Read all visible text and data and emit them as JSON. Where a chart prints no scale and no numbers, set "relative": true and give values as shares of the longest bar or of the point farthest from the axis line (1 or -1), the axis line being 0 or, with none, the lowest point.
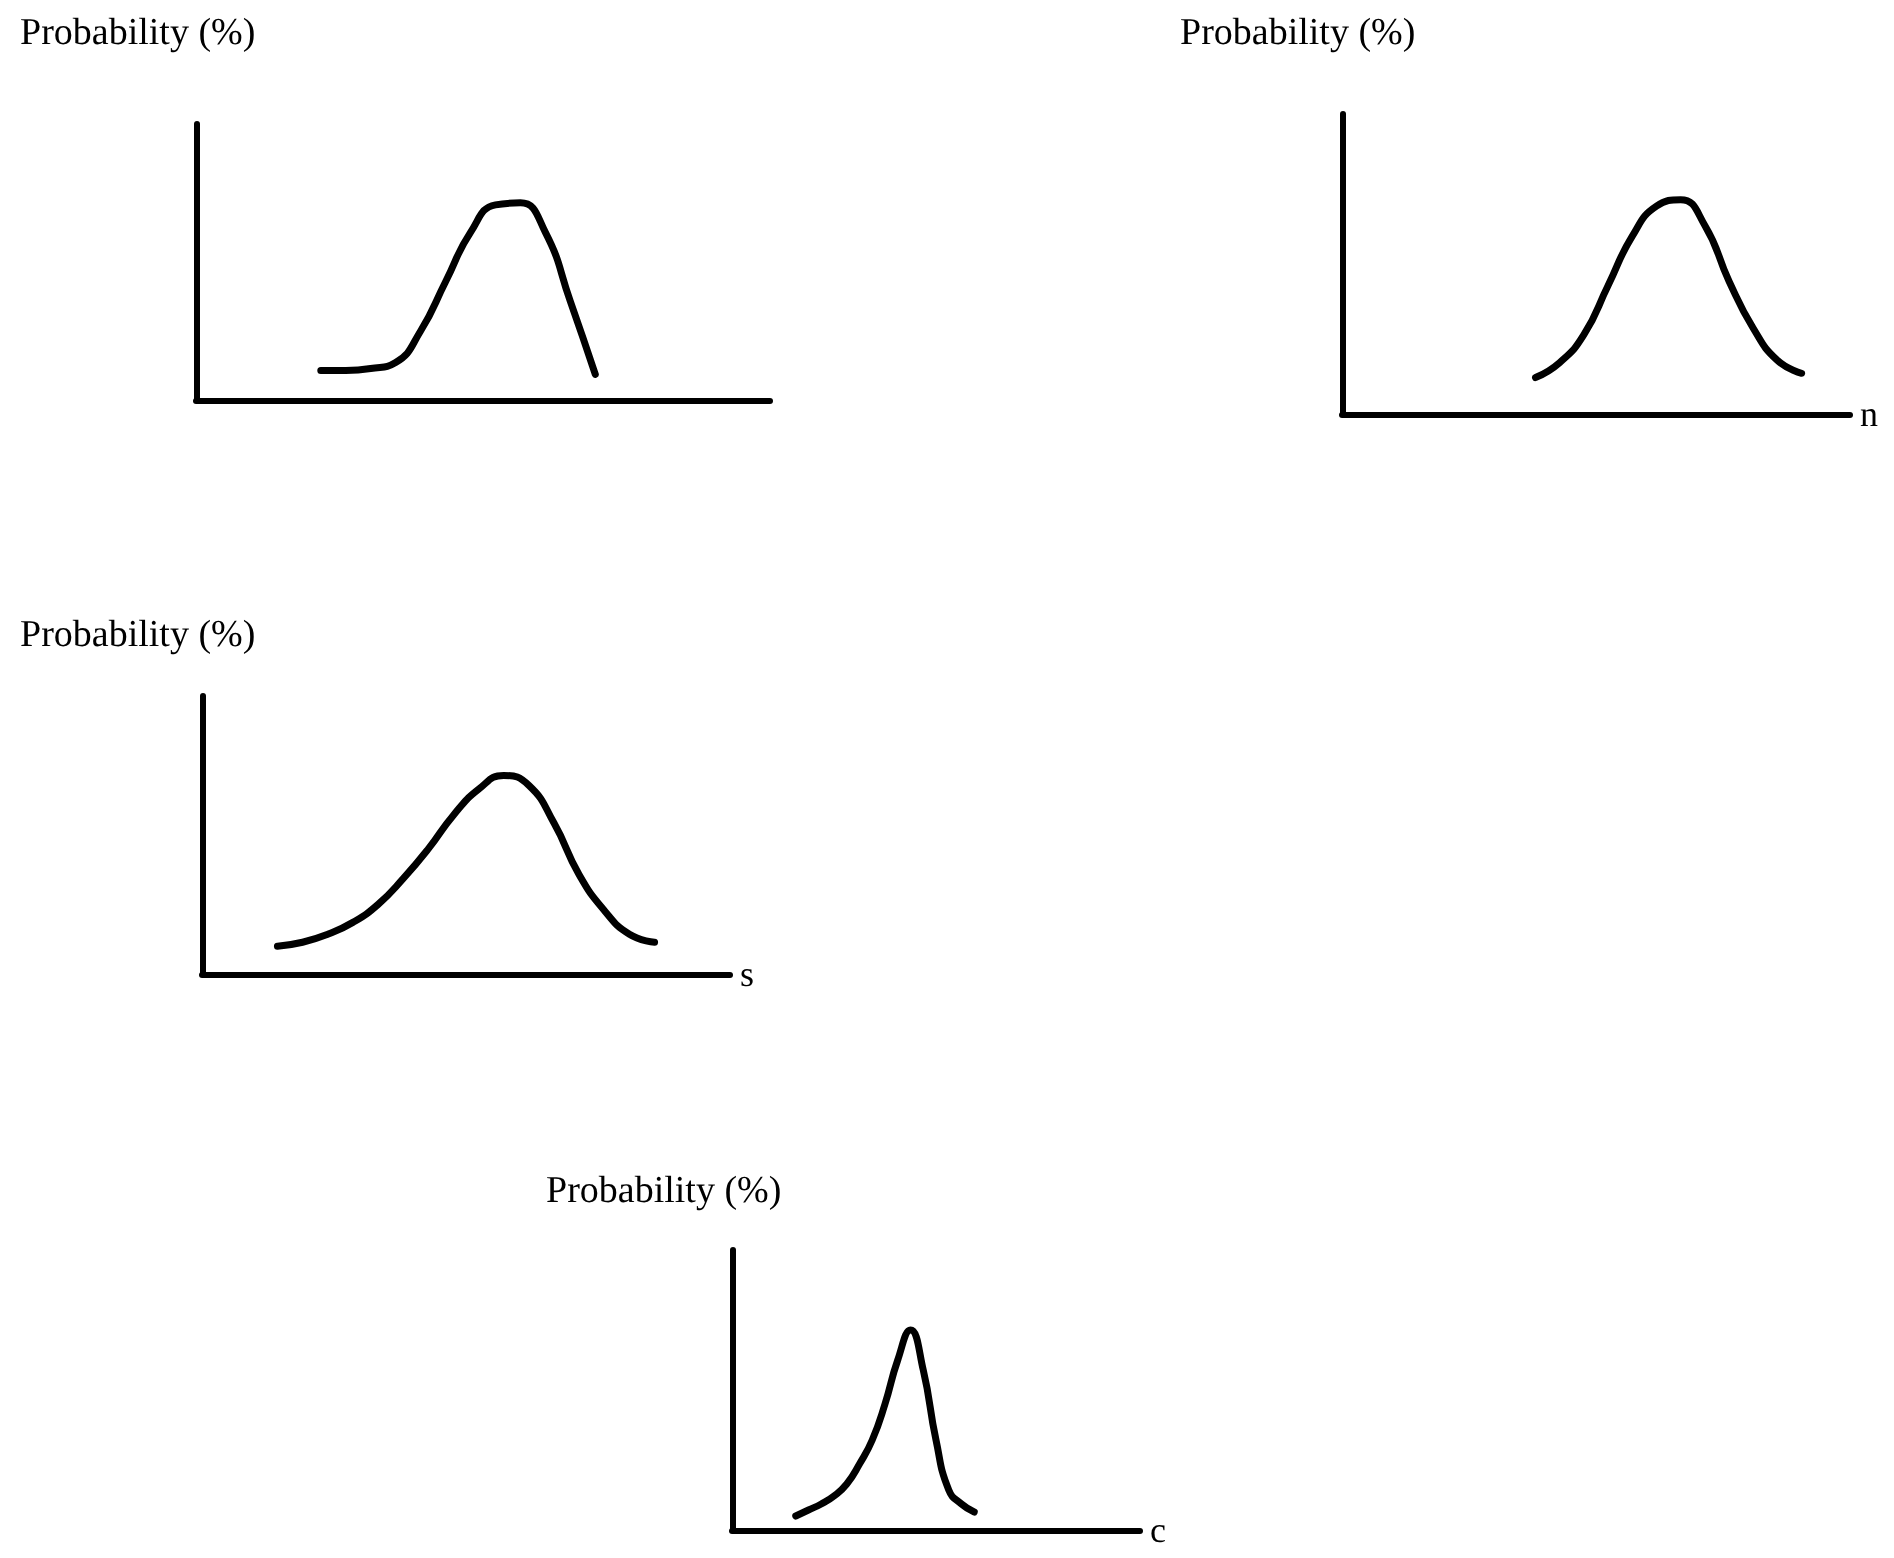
{
  "chart_data": [
    {
      "type": "line",
      "relative": true,
      "title": "Probability (%)",
      "categories": [
        null,
        null,
        null,
        null,
        null,
        null,
        null,
        null,
        null,
        null,
        null,
        null,
        null,
        null,
        null,
        null,
        null,
        null,
        null,
        null,
        null,
        null,
        null,
        null
      ],
      "series": [
        {
          "color": "#000000",
          "values": [
            null,
            null,
            null,
            null,
            null,
            0.15,
            0.15,
            0.16,
            0.19,
            0.35,
            0.6,
            0.85,
            0.99,
            1.0,
            0.85,
            0.5,
            0.13,
            null,
            null,
            null,
            null,
            null,
            null,
            null
          ]
        }
      ]
    },
    {
      "type": "line",
      "relative": true,
      "title": "Probability (%)",
      "xlabel": "n",
      "categories": [
        null,
        null,
        null,
        null,
        null,
        null,
        null,
        null,
        null,
        null,
        null,
        null,
        null,
        null,
        null,
        null,
        null,
        null,
        null,
        null,
        null,
        null
      ],
      "series": [
        {
          "color": "#000000",
          "values": [
            null,
            null,
            null,
            null,
            null,
            null,
            null,
            null,
            0.17,
            0.24,
            0.37,
            0.6,
            0.83,
            0.97,
            1.0,
            0.88,
            0.62,
            0.4,
            0.25,
            0.19,
            null,
            null
          ]
        }
      ]
    },
    {
      "type": "line",
      "relative": true,
      "title": "Probability (%)",
      "xlabel": "s",
      "categories": [
        null,
        null,
        null,
        null,
        null,
        null,
        null,
        null,
        null,
        null,
        null,
        null,
        null,
        null,
        null,
        null,
        null,
        null,
        null,
        null,
        null,
        null
      ],
      "series": [
        {
          "color": "#000000",
          "values": [
            null,
            null,
            null,
            0.14,
            0.16,
            0.2,
            0.26,
            0.35,
            0.48,
            0.63,
            0.8,
            0.93,
            1.0,
            0.95,
            0.76,
            0.5,
            0.32,
            0.2,
            0.16,
            null,
            null,
            null
          ]
        }
      ]
    },
    {
      "type": "line",
      "relative": true,
      "title": "Probability (%)",
      "xlabel": "c",
      "categories": [
        null,
        null,
        null,
        null,
        null,
        null,
        null,
        null,
        null,
        null,
        null,
        null,
        null,
        null,
        null,
        null,
        null,
        null,
        null,
        null,
        null,
        null,
        null,
        null,
        null,
        null,
        null,
        null,
        null,
        null,
        null,
        null,
        null
      ],
      "series": [
        {
          "color": "#000000",
          "values": [
            null,
            null,
            null,
            null,
            null,
            0.07,
            0.1,
            0.13,
            0.17,
            0.23,
            0.33,
            0.45,
            0.63,
            0.85,
            1.0,
            0.8,
            0.45,
            0.2,
            0.13,
            0.09,
            null,
            null,
            null,
            null,
            null,
            null,
            null,
            null,
            null,
            null,
            null,
            null,
            null
          ]
        }
      ]
    }
  ]
}
